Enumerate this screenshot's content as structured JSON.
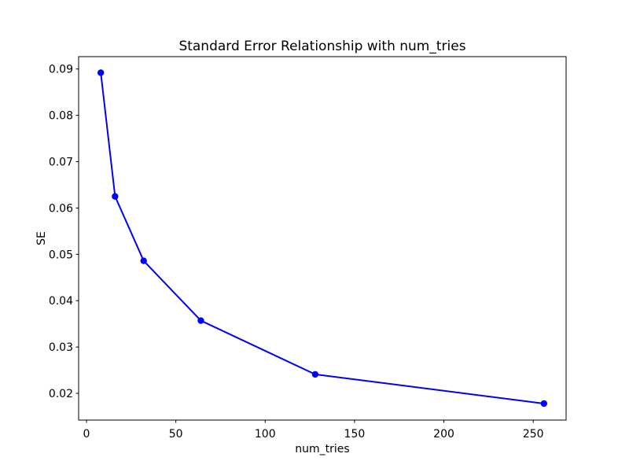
{
  "figure": {
    "background_color": "#ffffff",
    "text_color": "#000000"
  },
  "chart_data": {
    "type": "line",
    "title": "Standard Error Relationship with num_tries",
    "xlabel": "num_tries",
    "ylabel": "SE",
    "series": [
      {
        "name": "SE",
        "x": [
          8,
          16,
          32,
          64,
          128,
          256
        ],
        "y": [
          0.0892,
          0.0625,
          0.0486,
          0.0357,
          0.0241,
          0.0178
        ],
        "line_color": "#0000ff",
        "marker": "o"
      }
    ],
    "xlim": [
      -4.4,
      268.4
    ],
    "ylim": [
      0.014235,
      0.092665
    ],
    "x_ticks": [
      0,
      50,
      100,
      150,
      200,
      250
    ],
    "x_tick_labels": [
      "0",
      "50",
      "100",
      "150",
      "200",
      "250"
    ],
    "y_ticks": [
      0.02,
      0.03,
      0.04,
      0.05,
      0.06,
      0.07,
      0.08,
      0.09
    ],
    "y_tick_labels": [
      "0.02",
      "0.03",
      "0.04",
      "0.05",
      "0.06",
      "0.07",
      "0.08",
      "0.09"
    ],
    "grid": false,
    "legend": null,
    "spine_color": "#000000"
  }
}
